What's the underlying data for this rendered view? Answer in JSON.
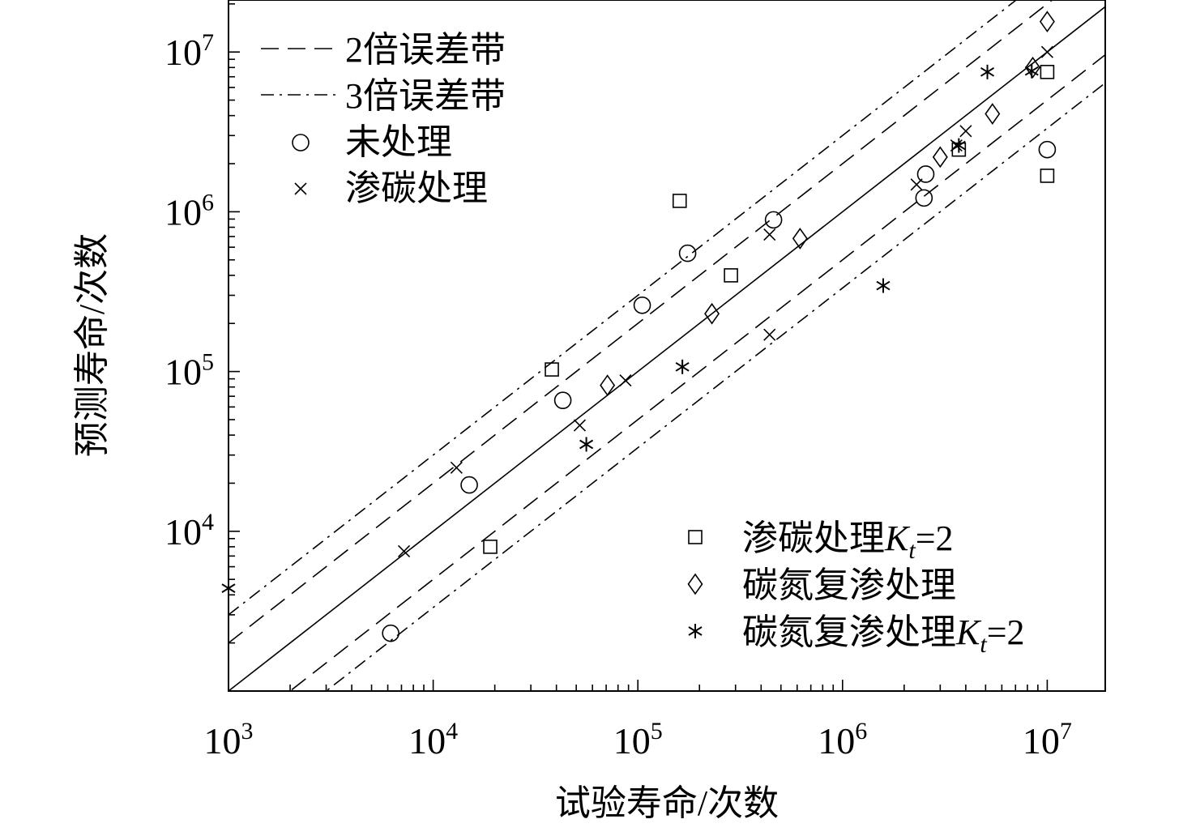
{
  "chart_data": {
    "type": "scatter",
    "title": "",
    "xlabel": "试验寿命/次数",
    "ylabel": "预测寿命/次数",
    "xscale": "log",
    "yscale": "log",
    "xlim": [
      1000,
      20000000
    ],
    "ylim": [
      1000,
      20000000
    ],
    "grid": false,
    "x_ticks": [
      {
        "base": "10",
        "exp": "3",
        "value": 1000
      },
      {
        "base": "10",
        "exp": "4",
        "value": 10000
      },
      {
        "base": "10",
        "exp": "5",
        "value": 100000
      },
      {
        "base": "10",
        "exp": "6",
        "value": 1000000
      },
      {
        "base": "10",
        "exp": "7",
        "value": 10000000
      }
    ],
    "y_ticks": [
      {
        "base": "10",
        "exp": "4",
        "value": 10000
      },
      {
        "base": "10",
        "exp": "5",
        "value": 100000
      },
      {
        "base": "10",
        "exp": "6",
        "value": 1000000
      },
      {
        "base": "10",
        "exp": "7",
        "value": 10000000
      }
    ],
    "reference_lines": [
      {
        "label": "",
        "style": "solid",
        "factor": 1
      },
      {
        "label": "2倍误差带",
        "style": "dashed",
        "factor": 2
      },
      {
        "label": "3倍误差带",
        "style": "dashdot",
        "factor": 3
      }
    ],
    "legend_top_left": [
      {
        "kind": "line",
        "style": "dashed",
        "label": "2倍误差带"
      },
      {
        "kind": "line",
        "style": "dashdot",
        "label": "3倍误差带"
      },
      {
        "kind": "marker",
        "marker": "circle",
        "label": "未处理"
      },
      {
        "kind": "marker",
        "marker": "x",
        "label": "渗碳处理"
      }
    ],
    "legend_bottom_right": [
      {
        "marker": "square",
        "label_main": "渗碳处理",
        "label_var": "K",
        "label_sub": "t",
        "label_tail": "=2"
      },
      {
        "marker": "diamond",
        "label_main": "碳氮复渗处理",
        "label_var": "",
        "label_sub": "",
        "label_tail": ""
      },
      {
        "marker": "asterisk",
        "label_main": "碳氮复渗处理",
        "label_var": "K",
        "label_sub": "t",
        "label_tail": "=2"
      }
    ],
    "series": [
      {
        "name": "未处理",
        "marker": "circle",
        "points": [
          [
            6200,
            2300
          ],
          [
            15000,
            19500
          ],
          [
            43000,
            66000
          ],
          [
            105000,
            260000
          ],
          [
            175000,
            550000
          ],
          [
            460000,
            890000
          ],
          [
            2500000,
            1220000
          ],
          [
            2550000,
            1720000
          ],
          [
            10000000,
            2450000
          ]
        ]
      },
      {
        "name": "渗碳处理",
        "marker": "x",
        "points": [
          [
            7200,
            7500
          ],
          [
            13000,
            25000
          ],
          [
            52000,
            46000
          ],
          [
            87000,
            88000
          ],
          [
            440000,
            720000
          ],
          [
            440000,
            170000
          ],
          [
            2300000,
            1480000
          ],
          [
            3600000,
            2600000
          ],
          [
            4000000,
            3200000
          ],
          [
            10000000,
            10000000
          ]
        ]
      },
      {
        "name": "渗碳处理Kt=2",
        "marker": "square",
        "points": [
          [
            19000,
            8000
          ],
          [
            38000,
            103000
          ],
          [
            160000,
            1170000
          ],
          [
            285000,
            400000
          ],
          [
            3700000,
            2450000
          ],
          [
            10000000,
            7500000
          ],
          [
            10000000,
            1680000
          ]
        ]
      },
      {
        "name": "碳氮复渗处理",
        "marker": "diamond",
        "points": [
          [
            71000,
            82000
          ],
          [
            230000,
            230000
          ],
          [
            620000,
            680000
          ],
          [
            3000000,
            2200000
          ],
          [
            5400000,
            4100000
          ],
          [
            8500000,
            8000000
          ],
          [
            10000000,
            15500000
          ]
        ]
      },
      {
        "name": "碳氮复渗处理Kt=2",
        "marker": "asterisk",
        "points": [
          [
            1000,
            4400
          ],
          [
            56000,
            35000
          ],
          [
            165000,
            107000
          ],
          [
            1580000,
            345000
          ],
          [
            5100000,
            7500000
          ],
          [
            8400000,
            7600000
          ],
          [
            3700000,
            2600000
          ]
        ]
      }
    ]
  }
}
